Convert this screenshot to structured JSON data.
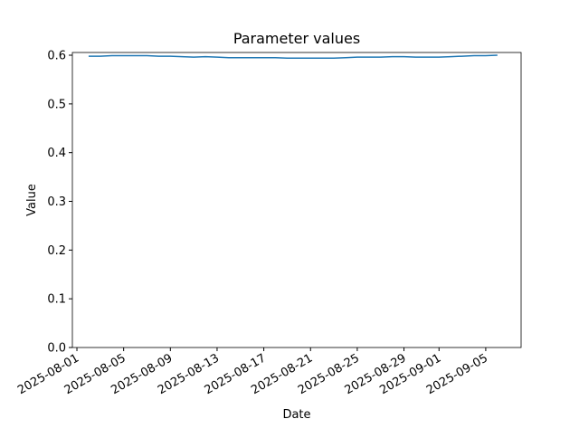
{
  "chart_data": {
    "type": "line",
    "title": "Parameter values",
    "xlabel": "Date",
    "ylabel": "Value",
    "x": [
      "2025-08-02",
      "2025-08-03",
      "2025-08-04",
      "2025-08-05",
      "2025-08-06",
      "2025-08-07",
      "2025-08-08",
      "2025-08-09",
      "2025-08-10",
      "2025-08-11",
      "2025-08-12",
      "2025-08-13",
      "2025-08-14",
      "2025-08-15",
      "2025-08-16",
      "2025-08-17",
      "2025-08-18",
      "2025-08-19",
      "2025-08-20",
      "2025-08-21",
      "2025-08-22",
      "2025-08-23",
      "2025-08-24",
      "2025-08-25",
      "2025-08-26",
      "2025-08-27",
      "2025-08-28",
      "2025-08-29",
      "2025-08-30",
      "2025-08-31",
      "2025-09-01",
      "2025-09-02",
      "2025-09-03",
      "2025-09-04",
      "2025-09-05",
      "2025-09-06"
    ],
    "series": [
      {
        "name": "Value",
        "color": "#1f77b4",
        "values": [
          0.598,
          0.598,
          0.599,
          0.599,
          0.599,
          0.599,
          0.598,
          0.598,
          0.597,
          0.596,
          0.597,
          0.596,
          0.595,
          0.595,
          0.595,
          0.595,
          0.595,
          0.594,
          0.594,
          0.594,
          0.594,
          0.594,
          0.595,
          0.596,
          0.596,
          0.596,
          0.597,
          0.597,
          0.596,
          0.596,
          0.596,
          0.597,
          0.598,
          0.599,
          0.599,
          0.6
        ]
      }
    ],
    "xlim": [
      "2025-07-31T14:40",
      "2025-09-08T00:40"
    ],
    "xticks": [
      "2025-08-01",
      "2025-08-05",
      "2025-08-09",
      "2025-08-13",
      "2025-08-17",
      "2025-08-21",
      "2025-08-25",
      "2025-08-29",
      "2025-09-01",
      "2025-09-05"
    ],
    "ylim": [
      0,
      0.6056
    ],
    "yticks": [
      {
        "value": 0,
        "label": "0.0"
      },
      0.1,
      0.2,
      0.3,
      0.4,
      0.5,
      0.6
    ]
  }
}
